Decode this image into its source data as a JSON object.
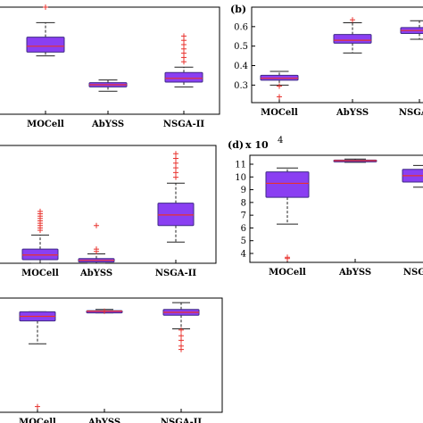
{
  "colors": {
    "box": "#8a3ff2",
    "box_edge": "#3f2a86",
    "median": "#e8322d",
    "outlier": "#e8322d",
    "whisker": "#222222"
  },
  "chart_data": [
    {
      "type": "box",
      "panel_label": "",
      "categories": [
        "MOCell",
        "AbYSS",
        "NSGA-II"
      ],
      "yticks": [],
      "ylim": [
        0,
        1
      ],
      "boxes": [
        {
          "q1": 0.58,
          "median": 0.635,
          "q3": 0.72,
          "lower": 0.545,
          "upper": 0.855,
          "outliers": [
            1.0
          ]
        },
        {
          "q1": 0.255,
          "median": 0.275,
          "q3": 0.295,
          "lower": 0.215,
          "upper": 0.32,
          "outliers": []
        },
        {
          "q1": 0.3,
          "median": 0.335,
          "q3": 0.39,
          "lower": 0.255,
          "upper": 0.44,
          "outliers": [
            0.49,
            0.53,
            0.57,
            0.61,
            0.65,
            0.69,
            0.73
          ]
        }
      ]
    },
    {
      "type": "box",
      "panel_label": "(b)",
      "categories": [
        "MOCell",
        "AbYSS",
        "NSGA-II"
      ],
      "yticks": [
        "0.3",
        "0.4",
        "0.5",
        "0.6"
      ],
      "ylim": [
        0.21,
        0.7
      ],
      "boxes": [
        {
          "q1": 0.325,
          "median": 0.335,
          "q3": 0.35,
          "lower": 0.3,
          "upper": 0.37,
          "outliers": [
            0.295,
            0.24
          ]
        },
        {
          "q1": 0.515,
          "median": 0.53,
          "q3": 0.56,
          "lower": 0.465,
          "upper": 0.62,
          "outliers": [
            0.635
          ]
        },
        {
          "q1": 0.565,
          "median": 0.58,
          "q3": 0.595,
          "lower": 0.535,
          "upper": 0.63,
          "outliers": []
        }
      ]
    },
    {
      "type": "box",
      "panel_label": "",
      "categories": [
        "MOCell",
        "AbYSS",
        "NSGA-II"
      ],
      "yticks": [],
      "ylim": [
        0,
        1
      ],
      "boxes": [
        {
          "q1": 0.03,
          "median": 0.07,
          "q3": 0.12,
          "lower": 0.0,
          "upper": 0.24,
          "outliers": [
            0.28,
            0.3,
            0.32,
            0.34,
            0.36,
            0.38,
            0.4,
            0.42,
            0.44
          ]
        },
        {
          "q1": 0.01,
          "median": 0.025,
          "q3": 0.04,
          "lower": 0.0,
          "upper": 0.08,
          "outliers": [
            0.1,
            0.12,
            0.32
          ]
        },
        {
          "q1": 0.32,
          "median": 0.41,
          "q3": 0.51,
          "lower": 0.18,
          "upper": 0.68,
          "outliers": [
            0.73,
            0.77,
            0.81,
            0.85,
            0.89,
            0.93
          ]
        }
      ]
    },
    {
      "type": "box",
      "panel_label": "(d)",
      "axis_multiplier": "x 10",
      "axis_multiplier_exp": "4",
      "categories": [
        "MOCell",
        "AbYSS",
        "NSGA-II"
      ],
      "yticks": [
        "4",
        "5",
        "6",
        "7",
        "8",
        "9",
        "10",
        "11"
      ],
      "ylim": [
        3.3,
        11.7
      ],
      "boxes": [
        {
          "q1": 8.4,
          "median": 9.5,
          "q3": 10.4,
          "lower": 6.3,
          "upper": 10.7,
          "outliers": [
            3.7,
            3.6
          ]
        },
        {
          "q1": 11.2,
          "median": 11.28,
          "q3": 11.32,
          "lower": 11.15,
          "upper": 11.4,
          "outliers": []
        },
        {
          "q1": 9.6,
          "median": 10.1,
          "q3": 10.6,
          "lower": 9.2,
          "upper": 10.9,
          "outliers": []
        }
      ]
    },
    {
      "type": "box",
      "panel_label": "",
      "categories": [
        "MOCell",
        "AbYSS",
        "NSGA-II"
      ],
      "yticks": [],
      "ylim": [
        0,
        1
      ],
      "boxes": [
        {
          "q1": 0.8,
          "median": 0.84,
          "q3": 0.88,
          "lower": 0.6,
          "upper": 0.88,
          "outliers": [
            0.05
          ]
        },
        {
          "q1": 0.87,
          "median": 0.885,
          "q3": 0.89,
          "lower": 0.87,
          "upper": 0.9,
          "outliers": [
            0.885
          ]
        },
        {
          "q1": 0.85,
          "median": 0.875,
          "q3": 0.9,
          "lower": 0.73,
          "upper": 0.96,
          "outliers": [
            0.72,
            0.67,
            0.63,
            0.58,
            0.55
          ]
        }
      ]
    }
  ]
}
